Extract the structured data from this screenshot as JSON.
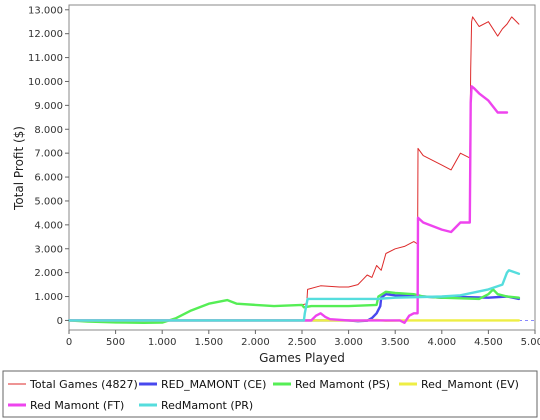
{
  "chart_data": {
    "type": "line",
    "title": "",
    "xlabel": "Games Played",
    "ylabel": "Total Profit ($)",
    "xlim": [
      0,
      5000
    ],
    "ylim": [
      -400,
      13200
    ],
    "x_ticks": [
      0,
      500,
      1000,
      1500,
      2000,
      2500,
      3000,
      3500,
      4000,
      4500,
      5000
    ],
    "x_tick_labels": [
      "0",
      "500",
      "1.000",
      "1.500",
      "2.000",
      "2.500",
      "3.000",
      "3.500",
      "4.000",
      "4.500",
      "5.000"
    ],
    "y_ticks": [
      0,
      1000,
      2000,
      3000,
      4000,
      5000,
      6000,
      7000,
      8000,
      9000,
      10000,
      11000,
      12000,
      13000
    ],
    "y_tick_labels": [
      "0",
      "1.000",
      "2.000",
      "3.000",
      "4.000",
      "5.000",
      "6.000",
      "7.000",
      "8.000",
      "9.000",
      "10.000",
      "11.000",
      "12.000",
      "13.000"
    ],
    "grid": false,
    "legend_position": "bottom",
    "series": [
      {
        "name": "Total Games (4827)",
        "color": "#dd2a2a",
        "x": [
          0,
          200,
          500,
          800,
          1000,
          1150,
          1300,
          1500,
          1700,
          1800,
          2000,
          2200,
          2500,
          2550,
          2560,
          2700,
          2900,
          3000,
          3100,
          3150,
          3200,
          3250,
          3300,
          3350,
          3400,
          3500,
          3600,
          3700,
          3740,
          3745,
          3800,
          4000,
          4100,
          4200,
          4300,
          4310,
          4320,
          4330,
          4400,
          4500,
          4600,
          4650,
          4700,
          4750,
          4827
        ],
        "y": [
          0,
          -50,
          -80,
          -100,
          -90,
          100,
          400,
          700,
          850,
          700,
          650,
          600,
          650,
          700,
          1300,
          1450,
          1400,
          1400,
          1500,
          1700,
          1900,
          1800,
          2300,
          2100,
          2800,
          3000,
          3100,
          3300,
          3200,
          7200,
          6900,
          6500,
          6300,
          7000,
          6800,
          10500,
          12500,
          12700,
          12300,
          12500,
          11900,
          12200,
          12400,
          12700,
          12400
        ]
      },
      {
        "name": "RED_MAMONT (CE)",
        "color": "#4848ee",
        "x": [
          0,
          2000,
          2500,
          3000,
          3100,
          3200,
          3250,
          3300,
          3340,
          3350,
          3400,
          3500,
          3800,
          4000,
          4200,
          4500,
          4700,
          4827
        ],
        "y": [
          0,
          0,
          0,
          0,
          -30,
          -10,
          100,
          300,
          600,
          950,
          1100,
          1050,
          1000,
          950,
          980,
          950,
          1000,
          900
        ]
      },
      {
        "name": "Red Mamont (PS)",
        "color": "#55ee55",
        "x": [
          0,
          200,
          500,
          800,
          1000,
          1150,
          1300,
          1500,
          1700,
          1800,
          2000,
          2200,
          2500,
          2520,
          2600,
          3000,
          3300,
          3320,
          3400,
          3500,
          3700,
          3800,
          4000,
          4400,
          4500,
          4550,
          4600,
          4700,
          4827
        ],
        "y": [
          0,
          -50,
          -80,
          -100,
          -90,
          100,
          400,
          700,
          850,
          700,
          650,
          600,
          650,
          550,
          600,
          600,
          650,
          1000,
          1200,
          1150,
          1100,
          1000,
          950,
          900,
          1100,
          1300,
          1100,
          1000,
          950
        ]
      },
      {
        "name": "Red_Mamont (EV)",
        "color": "#eeee44",
        "x": [
          0,
          2000,
          3000,
          3100,
          3200,
          3300,
          3400,
          3600,
          3700,
          3800,
          4300,
          4827
        ],
        "y": [
          0,
          0,
          0,
          -10,
          0,
          20,
          -10,
          0,
          0,
          0,
          0,
          0
        ]
      },
      {
        "name": "Red Mamont (FT)",
        "color": "#ee44ee",
        "x": [
          0,
          500,
          800,
          1000,
          2000,
          2600,
          2650,
          2700,
          2750,
          2800,
          3000,
          3300,
          3500,
          3550,
          3600,
          3650,
          3700,
          3740,
          3745,
          3800,
          4000,
          4100,
          4200,
          4300,
          4310,
          4320,
          4350,
          4400,
          4500,
          4600,
          4700
        ],
        "y": [
          0,
          0,
          0,
          0,
          0,
          0,
          200,
          300,
          150,
          50,
          0,
          0,
          0,
          0,
          -100,
          200,
          300,
          300,
          4300,
          4100,
          3800,
          3700,
          4100,
          4100,
          9100,
          9800,
          9700,
          9500,
          9200,
          8700,
          8700
        ]
      },
      {
        "name": "RedMamont (PR)",
        "color": "#55dddd",
        "x": [
          0,
          2000,
          2520,
          2530,
          2560,
          3000,
          3300,
          3500,
          4000,
          4200,
          4500,
          4650,
          4700,
          4720,
          4827
        ],
        "y": [
          0,
          0,
          0,
          300,
          900,
          900,
          900,
          950,
          1000,
          1050,
          1300,
          1500,
          2000,
          2100,
          1950
        ]
      }
    ]
  }
}
